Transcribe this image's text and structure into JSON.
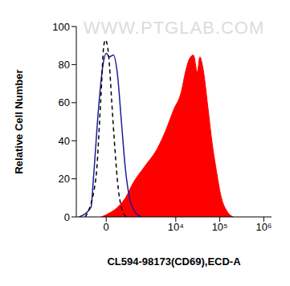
{
  "chart_data": {
    "type": "histogram",
    "watermark": "WWW.PTGLAB.COM",
    "x_label": "CL594-98173(CD69),ECD-A",
    "y_label": "Relative Cell Number",
    "xlim": [
      -1200,
      1500000
    ],
    "xticks": [
      0,
      {
        "value": 10000,
        "label": "10⁴"
      },
      {
        "value": 100000,
        "label": "10⁵"
      },
      {
        "value": 1000000,
        "label": "10⁶"
      }
    ],
    "ylim": [
      0,
      100
    ],
    "yticks": [
      0,
      20,
      40,
      60,
      80,
      100
    ],
    "grid": false,
    "series": [
      {
        "type": "area",
        "color": "#ff0000",
        "x": [
          -133,
          88,
          326,
          622,
          1022,
          2011,
          3811,
          5806,
          8836,
          13440,
          16540,
          20400,
          25200,
          31000,
          35200,
          41600,
          53500,
          66000,
          81400,
          109000,
          146000,
          204000
        ],
        "values": [
          0,
          2,
          5,
          10,
          18,
          27,
          36,
          45,
          56,
          66,
          76,
          83,
          85,
          76,
          84,
          78,
          58,
          40,
          26,
          10,
          3,
          0
        ]
      },
      {
        "type": "line",
        "color": "#1c1c9c",
        "x": [
          -1022,
          -463,
          -379,
          -203,
          -88,
          0,
          88,
          203,
          326,
          463,
          622,
          813,
          1182,
          1612
        ],
        "values": [
          0,
          5,
          20,
          60,
          80,
          86,
          84,
          85,
          75,
          50,
          25,
          10,
          2,
          0
        ]
      },
      {
        "type": "line",
        "color": "#000000",
        "line_style": "dashed",
        "x": [
          -693,
          -300,
          -156,
          -66,
          -22,
          66,
          156,
          250,
          352,
          463,
          657
        ],
        "values": [
          0,
          20,
          60,
          90,
          93,
          85,
          60,
          35,
          15,
          5,
          0
        ]
      }
    ]
  }
}
